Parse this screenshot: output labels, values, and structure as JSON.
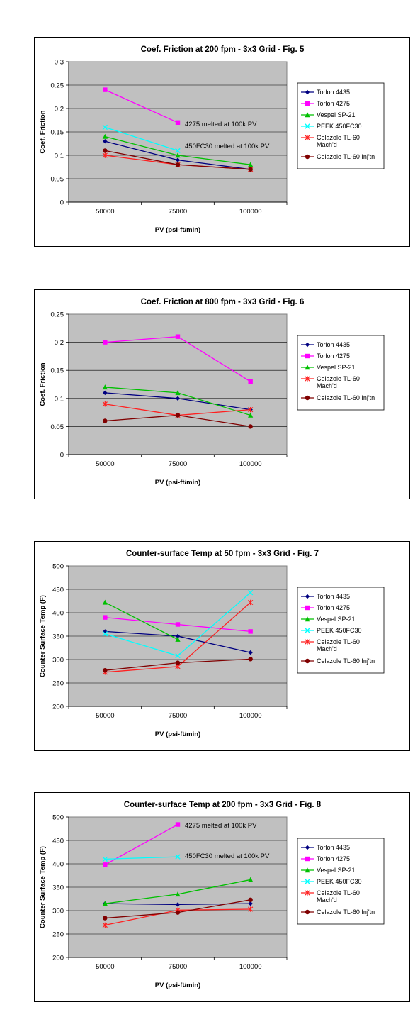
{
  "chart_data": [
    {
      "type": "line",
      "title": "Coef. Friction at 200 fpm - 3x3 Grid - Fig. 5",
      "xlabel": "PV (psi-ft/min)",
      "ylabel": "Coef. Friction",
      "categories": [
        "50000",
        "75000",
        "100000"
      ],
      "ylim": [
        0,
        0.3
      ],
      "yticks": [
        "0",
        "0.05",
        "0.1",
        "0.15",
        "0.2",
        "0.25",
        "0.3"
      ],
      "grid": true,
      "legend_position": "right",
      "series": [
        {
          "name": "Torlon 4435",
          "values": [
            0.13,
            0.09,
            0.07
          ],
          "color": "#000080",
          "marker": "diamond"
        },
        {
          "name": "Torlon 4275",
          "values": [
            0.24,
            0.17,
            null
          ],
          "color": "#ff00ff",
          "marker": "square"
        },
        {
          "name": "Vespel SP-21",
          "values": [
            0.14,
            0.1,
            0.08
          ],
          "color": "#00c000",
          "marker": "triangle"
        },
        {
          "name": "PEEK 450FC30",
          "values": [
            0.16,
            0.11,
            null
          ],
          "color": "#00ffff",
          "marker": "x"
        },
        {
          "name": "Celazole TL-60 Mach'd",
          "legend_lines": [
            "Celazole TL-60",
            "Mach'd"
          ],
          "values": [
            0.1,
            0.08,
            0.07
          ],
          "color": "#ff2020",
          "marker": "star"
        },
        {
          "name": "Celazole TL-60 Inj'tn",
          "legend_lines": [
            "Celazole TL-60 Inj'tn"
          ],
          "values": [
            0.11,
            0.08,
            0.07
          ],
          "color": "#800000",
          "marker": "circle"
        }
      ],
      "annotations": [
        {
          "text": "4275 melted at 100k PV",
          "x": "75000",
          "y": 0.167
        },
        {
          "text": "450FC30 melted at 100k PV",
          "x": "75000",
          "y": 0.12
        }
      ]
    },
    {
      "type": "line",
      "title": "Coef. Friction at 800 fpm - 3x3 Grid - Fig. 6",
      "xlabel": "PV (psi-ft/min)",
      "ylabel": "Coef. Friction",
      "categories": [
        "50000",
        "75000",
        "100000"
      ],
      "ylim": [
        0,
        0.25
      ],
      "yticks": [
        "0",
        "0.05",
        "0.1",
        "0.15",
        "0.2",
        "0.25"
      ],
      "grid": true,
      "legend_position": "right",
      "series": [
        {
          "name": "Torlon 4435",
          "values": [
            0.11,
            0.1,
            0.08
          ],
          "color": "#000080",
          "marker": "diamond"
        },
        {
          "name": "Torlon 4275",
          "values": [
            0.2,
            0.21,
            0.13
          ],
          "color": "#ff00ff",
          "marker": "square"
        },
        {
          "name": "Vespel SP-21",
          "values": [
            0.12,
            0.11,
            0.07
          ],
          "color": "#00c000",
          "marker": "triangle"
        },
        {
          "name": "Celazole TL-60 Mach'd",
          "legend_lines": [
            "Celazole TL-60",
            "Mach'd"
          ],
          "values": [
            0.09,
            0.07,
            0.08
          ],
          "color": "#ff2020",
          "marker": "star"
        },
        {
          "name": "Celazole TL-60 Inj'tn",
          "legend_lines": [
            "Celazole TL-60 Inj'tn"
          ],
          "values": [
            0.06,
            0.07,
            0.05
          ],
          "color": "#800000",
          "marker": "circle"
        }
      ],
      "annotations": []
    },
    {
      "type": "line",
      "title": "Counter-surface Temp at 50 fpm - 3x3 Grid - Fig. 7",
      "xlabel": "PV (psi-ft/min)",
      "ylabel": "Counter Surface Temp (F)",
      "categories": [
        "50000",
        "75000",
        "100000"
      ],
      "ylim": [
        200,
        500
      ],
      "yticks": [
        "200",
        "250",
        "300",
        "350",
        "400",
        "450",
        "500"
      ],
      "grid": true,
      "legend_position": "right",
      "series": [
        {
          "name": "Torlon 4435",
          "values": [
            360,
            350,
            315
          ],
          "color": "#000080",
          "marker": "diamond"
        },
        {
          "name": "Torlon 4275",
          "values": [
            390,
            375,
            360
          ],
          "color": "#ff00ff",
          "marker": "square"
        },
        {
          "name": "Vespel SP-21",
          "values": [
            422,
            343,
            null
          ],
          "color": "#00c000",
          "marker": "triangle"
        },
        {
          "name": "PEEK 450FC30",
          "values": [
            355,
            308,
            443
          ],
          "color": "#00ffff",
          "marker": "x"
        },
        {
          "name": "Celazole TL-60 Mach'd",
          "legend_lines": [
            "Celazole TL-60",
            "Mach'd"
          ],
          "values": [
            273,
            285,
            422
          ],
          "color": "#ff2020",
          "marker": "star"
        },
        {
          "name": "Celazole TL-60 Inj'tn",
          "legend_lines": [
            "Celazole TL-60 Inj'tn"
          ],
          "values": [
            277,
            293,
            301
          ],
          "color": "#800000",
          "marker": "circle"
        }
      ],
      "annotations": []
    },
    {
      "type": "line",
      "title": "Counter-surface Temp at 200 fpm - 3x3 Grid - Fig. 8",
      "xlabel": "PV (psi-ft/min)",
      "ylabel": "Counter Surface Temp (F)",
      "categories": [
        "50000",
        "75000",
        "100000"
      ],
      "ylim": [
        200,
        500
      ],
      "yticks": [
        "200",
        "250",
        "300",
        "350",
        "400",
        "450",
        "500"
      ],
      "grid": true,
      "legend_position": "right",
      "series": [
        {
          "name": "Torlon 4435",
          "values": [
            315,
            313,
            315
          ],
          "color": "#000080",
          "marker": "diamond"
        },
        {
          "name": "Torlon 4275",
          "values": [
            398,
            484,
            null
          ],
          "color": "#ff00ff",
          "marker": "square"
        },
        {
          "name": "Vespel SP-21",
          "values": [
            315,
            335,
            366
          ],
          "color": "#00c000",
          "marker": "triangle"
        },
        {
          "name": "PEEK 450FC30",
          "values": [
            410,
            415,
            null
          ],
          "color": "#00ffff",
          "marker": "x"
        },
        {
          "name": "Celazole TL-60 Mach'd",
          "legend_lines": [
            "Celazole TL-60",
            "Mach'd"
          ],
          "values": [
            269,
            301,
            303
          ],
          "color": "#ff2020",
          "marker": "star"
        },
        {
          "name": "Celazole TL-60 Inj'tn",
          "legend_lines": [
            "Celazole TL-60 Inj'tn"
          ],
          "values": [
            284,
            296,
            323
          ],
          "color": "#800000",
          "marker": "circle"
        }
      ],
      "annotations": [
        {
          "text": "4275 melted at 100k PV",
          "x": "75000",
          "y": 482
        },
        {
          "text": "450FC30 melted at 100k PV",
          "x": "75000",
          "y": 417
        }
      ]
    }
  ]
}
